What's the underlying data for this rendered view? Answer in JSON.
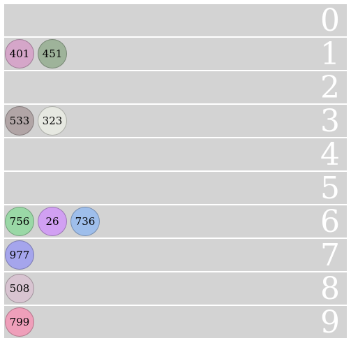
{
  "rows": [
    {
      "label": "0",
      "balls": []
    },
    {
      "label": "1",
      "balls": [
        {
          "value": "401",
          "color": "#d5a6c9"
        },
        {
          "value": "451",
          "color": "#9eb39a"
        }
      ]
    },
    {
      "label": "2",
      "balls": []
    },
    {
      "label": "3",
      "balls": [
        {
          "value": "533",
          "color": "#b1a5a6"
        },
        {
          "value": "323",
          "color": "#e6e8e1"
        }
      ]
    },
    {
      "label": "4",
      "balls": []
    },
    {
      "label": "5",
      "balls": []
    },
    {
      "label": "6",
      "balls": [
        {
          "value": "756",
          "color": "#9ad8a6"
        },
        {
          "value": "26",
          "color": "#d1a0f2"
        },
        {
          "value": "736",
          "color": "#9ebeeb"
        }
      ]
    },
    {
      "label": "7",
      "balls": [
        {
          "value": "977",
          "color": "#a5a5ec"
        }
      ]
    },
    {
      "label": "8",
      "balls": [
        {
          "value": "508",
          "color": "#d8c4d1"
        }
      ]
    },
    {
      "label": "9",
      "balls": [
        {
          "value": "799",
          "color": "#ef9fba"
        }
      ]
    }
  ]
}
